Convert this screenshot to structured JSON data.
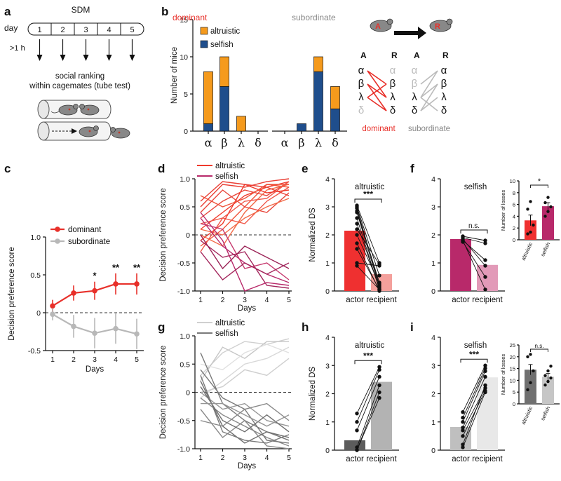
{
  "colors": {
    "dominant": "#e8302a",
    "subordinate": "#b8b8b8",
    "altruistic": "#f59a1c",
    "selfish": "#1f4e8c",
    "dom_alt": "#ef3a2c",
    "dom_self": "#b8296a",
    "sub_alt": "#d0d0d0",
    "sub_self": "#7a7a7a",
    "mouse": "#888888"
  },
  "panels": {
    "a": "a",
    "b": "b",
    "c": "c",
    "d": "d",
    "e": "e",
    "f": "f",
    "g": "g",
    "h": "h",
    "i": "i"
  },
  "panel_a": {
    "title": "SDM",
    "day_label": "day",
    "days": [
      "1",
      "2",
      "3",
      "4",
      "5"
    ],
    "delay": ">1 h",
    "ranking_line1": "social ranking",
    "ranking_line2": "within cagemates (tube test)"
  },
  "panel_b_schema": {
    "actor": "A",
    "recipient": "R",
    "ranks": [
      "α",
      "β",
      "λ",
      "δ"
    ],
    "dominant": "dominant",
    "subordinate": "subordinate"
  },
  "chart_data": [
    {
      "id": "b",
      "type": "bar",
      "stacked": true,
      "group_labels": [
        "dominant",
        "subordinate"
      ],
      "categories": [
        "α",
        "β",
        "λ",
        "δ"
      ],
      "series": [
        {
          "name": "selfish",
          "dominant": [
            1,
            6,
            0,
            0
          ],
          "subordinate": [
            0,
            1,
            8,
            3
          ]
        },
        {
          "name": "altruistic",
          "dominant": [
            7,
            4,
            2,
            0
          ],
          "subordinate": [
            0,
            0,
            2,
            3
          ]
        }
      ],
      "legend": [
        "altruistic",
        "selfish"
      ],
      "ylabel": "Number of mice",
      "ylim": [
        0,
        15
      ],
      "yticks": [
        "0",
        "5",
        "10",
        "15"
      ]
    },
    {
      "id": "c",
      "type": "line",
      "x": [
        1,
        2,
        3,
        4,
        5
      ],
      "series": [
        {
          "name": "dominant",
          "values": [
            0.09,
            0.26,
            0.29,
            0.38,
            0.38
          ],
          "err": [
            0.08,
            0.1,
            0.12,
            0.14,
            0.14
          ]
        },
        {
          "name": "subordinate",
          "values": [
            -0.02,
            -0.18,
            -0.27,
            -0.21,
            -0.28
          ],
          "err": [
            0.08,
            0.15,
            0.2,
            0.2,
            0.2
          ]
        }
      ],
      "sig": [
        "",
        "",
        "*",
        "**",
        "**"
      ],
      "xlabel": "Days",
      "ylabel": "Decision preference score",
      "ylim": [
        -0.5,
        1.0
      ],
      "yticks": [
        "-0.5",
        "0",
        "0.5",
        "1.0"
      ],
      "xticks": [
        "1",
        "2",
        "3",
        "4",
        "5"
      ]
    },
    {
      "id": "d",
      "type": "line",
      "x": [
        1,
        2,
        3,
        4,
        5
      ],
      "legend": [
        "altruistic",
        "selfish"
      ],
      "xlabel": "Days",
      "ylabel": "Decision preference score",
      "ylim": [
        -1.0,
        1.0
      ],
      "yticks": [
        "-1.0",
        "-0.5",
        "0",
        "0.5",
        "1.0"
      ],
      "xticks": [
        "1",
        "2",
        "3",
        "4",
        "5"
      ],
      "altruistic": [
        [
          0.1,
          0.4,
          0.7,
          0.85,
          0.95
        ],
        [
          -0.2,
          0.1,
          0.5,
          0.9,
          0.85
        ],
        [
          0.3,
          0.6,
          0.8,
          0.7,
          0.95
        ],
        [
          0.0,
          -0.2,
          0.4,
          0.8,
          0.9
        ],
        [
          0.5,
          0.9,
          0.85,
          0.95,
          1.0
        ],
        [
          0.2,
          0.3,
          0.2,
          0.6,
          0.85
        ],
        [
          -0.1,
          0.2,
          0.9,
          0.75,
          0.8
        ],
        [
          0.7,
          0.5,
          0.65,
          0.9,
          0.9
        ],
        [
          0.4,
          0.8,
          0.5,
          0.4,
          0.75
        ],
        [
          0.1,
          0.0,
          0.3,
          0.5,
          0.65
        ],
        [
          0.6,
          0.95,
          0.9,
          0.85,
          0.7
        ],
        [
          -0.3,
          0.3,
          0.6,
          0.65,
          0.95
        ]
      ],
      "selfish": [
        [
          0.3,
          -0.2,
          -0.5,
          -0.7,
          -0.85
        ],
        [
          -0.1,
          -0.4,
          -0.3,
          -0.9,
          -0.95
        ],
        [
          0.2,
          0.1,
          -0.6,
          -0.5,
          -0.8
        ],
        [
          0.0,
          -0.6,
          -0.2,
          -0.4,
          -0.6
        ],
        [
          0.4,
          -0.1,
          -1.0,
          -0.85,
          -0.9
        ],
        [
          -0.3,
          -0.8,
          -0.5,
          -0.7,
          -0.5
        ]
      ]
    },
    {
      "id": "e",
      "type": "bar",
      "title": "altruistic",
      "categories": [
        "actor",
        "recipient"
      ],
      "values": [
        2.15,
        0.6
      ],
      "paired": [
        [
          3.05,
          1.0
        ],
        [
          3.0,
          0.55
        ],
        [
          2.95,
          0.2
        ],
        [
          2.85,
          0.3
        ],
        [
          2.8,
          0.15
        ],
        [
          2.6,
          0.05
        ],
        [
          2.4,
          0.1
        ],
        [
          2.2,
          0.95
        ],
        [
          2.0,
          0.25
        ],
        [
          1.7,
          0.0
        ],
        [
          1.5,
          0.05
        ],
        [
          1.0,
          0.9
        ],
        [
          0.9,
          0.05
        ]
      ],
      "sig": "***",
      "ylabel": "Normalized DS",
      "ylim": [
        0,
        4
      ],
      "yticks": [
        "0",
        "1",
        "2",
        "3",
        "4"
      ]
    },
    {
      "id": "f",
      "type": "bar",
      "title": "selfish",
      "categories": [
        "actor",
        "recipient"
      ],
      "values": [
        1.85,
        0.93
      ],
      "paired": [
        [
          1.95,
          1.8
        ],
        [
          1.9,
          1.7
        ],
        [
          1.85,
          0.9
        ],
        [
          1.8,
          0.05
        ],
        [
          1.75,
          0.5
        ],
        [
          1.8,
          1.1
        ]
      ],
      "sig": "n.s.",
      "ylim": [
        0,
        4
      ],
      "yticks": [
        "0",
        "1",
        "2",
        "3",
        "4"
      ]
    },
    {
      "id": "f_inset",
      "type": "bar",
      "categories": [
        "altruistic",
        "selfish"
      ],
      "values": [
        3.3,
        5.7
      ],
      "err": [
        0.9,
        0.6
      ],
      "points": [
        [
          1.0,
          1.3,
          2.5,
          5.2,
          6.5
        ],
        [
          4.0,
          4.8,
          5.6,
          6.3,
          7.2
        ]
      ],
      "sig": "*",
      "ylabel": "Number of losses",
      "ylim": [
        0,
        10
      ],
      "yticks": [
        "0",
        "2",
        "4",
        "6",
        "8",
        "10"
      ]
    },
    {
      "id": "g",
      "type": "line",
      "x": [
        1,
        2,
        3,
        4,
        5
      ],
      "legend": [
        "altruistic",
        "selfish"
      ],
      "xlabel": "Days",
      "ylabel": "Decision preference score",
      "ylim": [
        -1.0,
        1.0
      ],
      "yticks": [
        "-1.0",
        "-0.5",
        "0",
        "0.5",
        "1.0"
      ],
      "xticks": [
        "1",
        "2",
        "3",
        "4",
        "5"
      ],
      "altruistic": [
        [
          0.3,
          0.7,
          0.9,
          0.85,
          0.95
        ],
        [
          -0.1,
          0.2,
          0.5,
          0.6,
          0.8
        ],
        [
          0.2,
          0.8,
          0.6,
          0.9,
          0.9
        ],
        [
          0.5,
          0.4,
          0.7,
          0.85,
          0.7
        ],
        [
          0.0,
          0.1,
          0.4,
          0.3,
          0.6
        ]
      ],
      "selfish": [
        [
          0.7,
          -0.2,
          -0.5,
          -0.7,
          -0.85
        ],
        [
          -0.1,
          -0.4,
          -0.6,
          -0.8,
          -0.95
        ],
        [
          0.2,
          -0.6,
          -0.9,
          -0.7,
          -0.8
        ],
        [
          0.0,
          -0.3,
          -0.2,
          -0.5,
          -0.6
        ],
        [
          0.4,
          -0.1,
          -0.3,
          -0.85,
          -0.9
        ],
        [
          -0.3,
          -0.8,
          -0.5,
          -0.95,
          -1.0
        ],
        [
          0.1,
          -0.5,
          -0.7,
          -0.4,
          -0.7
        ],
        [
          -0.2,
          -0.2,
          -0.4,
          -0.6,
          -0.4
        ],
        [
          0.3,
          -0.7,
          -0.85,
          -0.9,
          -0.75
        ],
        [
          -0.5,
          -0.6,
          -0.3,
          -0.2,
          -0.5
        ]
      ]
    },
    {
      "id": "h",
      "type": "bar",
      "title": "altruistic",
      "categories": [
        "actor",
        "recipient"
      ],
      "values": [
        0.35,
        2.42
      ],
      "paired": [
        [
          1.3,
          2.95
        ],
        [
          1.0,
          2.85
        ],
        [
          0.7,
          2.6
        ],
        [
          0.1,
          2.3
        ],
        [
          0.0,
          2.05
        ],
        [
          0.0,
          1.85
        ]
      ],
      "sig": "***",
      "ylabel": "Normalized DS",
      "ylim": [
        0,
        4
      ],
      "yticks": [
        "0",
        "1",
        "2",
        "3",
        "4"
      ]
    },
    {
      "id": "i",
      "type": "bar",
      "title": "selfish",
      "categories": [
        "actor",
        "recipient"
      ],
      "values": [
        0.82,
        2.58
      ],
      "paired": [
        [
          1.35,
          3.0
        ],
        [
          1.15,
          2.9
        ],
        [
          1.0,
          2.8
        ],
        [
          0.8,
          2.6
        ],
        [
          0.7,
          2.2
        ],
        [
          0.5,
          2.1
        ],
        [
          0.2,
          2.3
        ],
        [
          0.1,
          2.05
        ]
      ],
      "sig": "***",
      "ylim": [
        0,
        4
      ],
      "yticks": [
        "0",
        "1",
        "2",
        "3",
        "4"
      ]
    },
    {
      "id": "i_inset",
      "type": "bar",
      "categories": [
        "altruistic",
        "selfish"
      ],
      "values": [
        14.5,
        11.5
      ],
      "err": [
        2.2,
        1.4
      ],
      "points": [
        [
          6,
          9,
          14,
          20,
          21
        ],
        [
          8,
          9.5,
          11,
          12,
          14,
          16
        ]
      ],
      "sig": "n.s.",
      "ylabel": "Number of losses",
      "ylim": [
        0,
        25
      ],
      "yticks": [
        "0",
        "5",
        "10",
        "15",
        "20",
        "25"
      ]
    }
  ]
}
